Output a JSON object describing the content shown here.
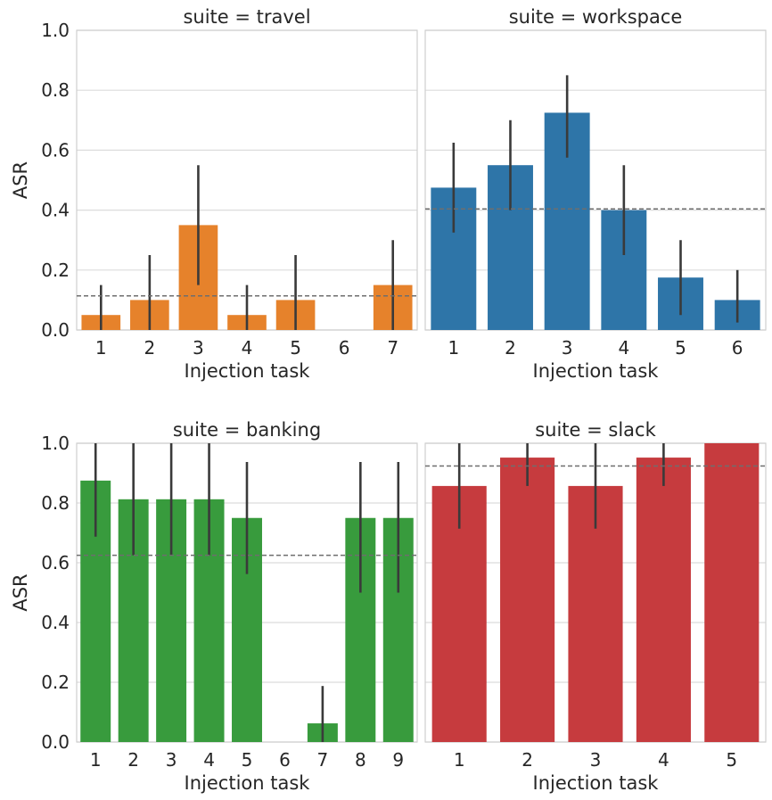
{
  "chart_data": [
    {
      "type": "bar",
      "title": "suite = travel",
      "xlabel": "Injection task",
      "ylabel": "ASR",
      "ylim": [
        0,
        1
      ],
      "yticks": [
        "0.0",
        "0.2",
        "0.4",
        "0.6",
        "0.8",
        "1.0"
      ],
      "show_ytick_labels": true,
      "grid": true,
      "color": "#e6822b",
      "categories": [
        "1",
        "2",
        "3",
        "4",
        "5",
        "6",
        "7"
      ],
      "values": [
        0.05,
        0.1,
        0.35,
        0.05,
        0.1,
        0.0,
        0.15
      ],
      "ci_low": [
        0.0,
        0.0,
        0.15,
        0.0,
        0.0,
        0.0,
        0.0
      ],
      "ci_high": [
        0.15,
        0.25,
        0.55,
        0.15,
        0.25,
        0.0,
        0.3
      ],
      "mean_line": 0.114
    },
    {
      "type": "bar",
      "title": "suite = workspace",
      "xlabel": "Injection task",
      "ylabel": "",
      "ylim": [
        0,
        1
      ],
      "yticks": [
        "0.0",
        "0.2",
        "0.4",
        "0.6",
        "0.8",
        "1.0"
      ],
      "show_ytick_labels": false,
      "grid": true,
      "color": "#2e75a8",
      "categories": [
        "1",
        "2",
        "3",
        "4",
        "5",
        "6"
      ],
      "values": [
        0.475,
        0.55,
        0.725,
        0.4,
        0.175,
        0.1
      ],
      "ci_low": [
        0.325,
        0.4,
        0.575,
        0.25,
        0.05,
        0.025
      ],
      "ci_high": [
        0.625,
        0.7,
        0.85,
        0.55,
        0.3,
        0.2
      ],
      "mean_line": 0.404
    },
    {
      "type": "bar",
      "title": "suite = banking",
      "xlabel": "Injection task",
      "ylabel": "ASR",
      "ylim": [
        0,
        1
      ],
      "yticks": [
        "0.0",
        "0.2",
        "0.4",
        "0.6",
        "0.8",
        "1.0"
      ],
      "show_ytick_labels": true,
      "grid": true,
      "color": "#389b3d",
      "categories": [
        "1",
        "2",
        "3",
        "4",
        "5",
        "6",
        "7",
        "8",
        "9"
      ],
      "values": [
        0.875,
        0.8125,
        0.8125,
        0.8125,
        0.75,
        0.0,
        0.0625,
        0.75,
        0.75
      ],
      "ci_low": [
        0.6875,
        0.625,
        0.625,
        0.625,
        0.5625,
        0.0,
        0.0,
        0.5,
        0.5
      ],
      "ci_high": [
        1.0,
        1.0,
        1.0,
        1.0,
        0.9375,
        0.0,
        0.1875,
        0.9375,
        0.9375
      ],
      "mean_line": 0.625
    },
    {
      "type": "bar",
      "title": "suite = slack",
      "xlabel": "Injection task",
      "ylabel": "",
      "ylim": [
        0,
        1
      ],
      "yticks": [
        "0.0",
        "0.2",
        "0.4",
        "0.6",
        "0.8",
        "1.0"
      ],
      "show_ytick_labels": false,
      "grid": true,
      "color": "#c63b3e",
      "categories": [
        "1",
        "2",
        "3",
        "4",
        "5"
      ],
      "values": [
        0.857,
        0.952,
        0.857,
        0.952,
        1.0
      ],
      "ci_low": [
        0.714,
        0.857,
        0.714,
        0.857,
        1.0
      ],
      "ci_high": [
        1.0,
        1.0,
        1.0,
        1.0,
        1.0
      ],
      "mean_line": 0.924
    }
  ]
}
